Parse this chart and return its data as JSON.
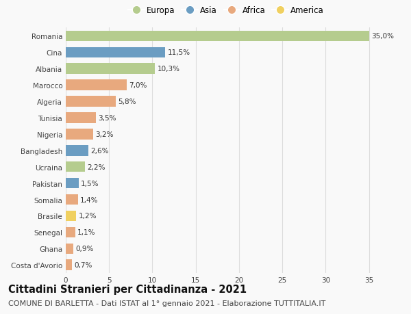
{
  "countries": [
    "Costa d'Avorio",
    "Ghana",
    "Senegal",
    "Brasile",
    "Somalia",
    "Pakistan",
    "Ucraina",
    "Bangladesh",
    "Nigeria",
    "Tunisia",
    "Algeria",
    "Marocco",
    "Albania",
    "Cina",
    "Romania"
  ],
  "values": [
    0.7,
    0.9,
    1.1,
    1.2,
    1.4,
    1.5,
    2.2,
    2.6,
    3.2,
    3.5,
    5.8,
    7.0,
    10.3,
    11.5,
    35.0
  ],
  "labels": [
    "0,7%",
    "0,9%",
    "1,1%",
    "1,2%",
    "1,4%",
    "1,5%",
    "2,2%",
    "2,6%",
    "3,2%",
    "3,5%",
    "5,8%",
    "7,0%",
    "10,3%",
    "11,5%",
    "35,0%"
  ],
  "continents": [
    "Africa",
    "Africa",
    "Africa",
    "America",
    "Africa",
    "Asia",
    "Europa",
    "Asia",
    "Africa",
    "Africa",
    "Africa",
    "Africa",
    "Europa",
    "Asia",
    "Europa"
  ],
  "colors": {
    "Europa": "#b5cc8e",
    "Asia": "#6b9dc2",
    "Africa": "#e8a97e",
    "America": "#f0d060"
  },
  "legend_order": [
    "Europa",
    "Asia",
    "Africa",
    "America"
  ],
  "title": "Cittadini Stranieri per Cittadinanza - 2021",
  "subtitle": "COMUNE DI BARLETTA - Dati ISTAT al 1° gennaio 2021 - Elaborazione TUTTITALIA.IT",
  "xlim": [
    0,
    37
  ],
  "xticks": [
    0,
    5,
    10,
    15,
    20,
    25,
    30,
    35
  ],
  "background_color": "#f9f9f9",
  "grid_color": "#dddddd",
  "bar_height": 0.65,
  "title_fontsize": 10.5,
  "subtitle_fontsize": 8,
  "label_fontsize": 7.5,
  "tick_fontsize": 7.5,
  "legend_fontsize": 8.5
}
